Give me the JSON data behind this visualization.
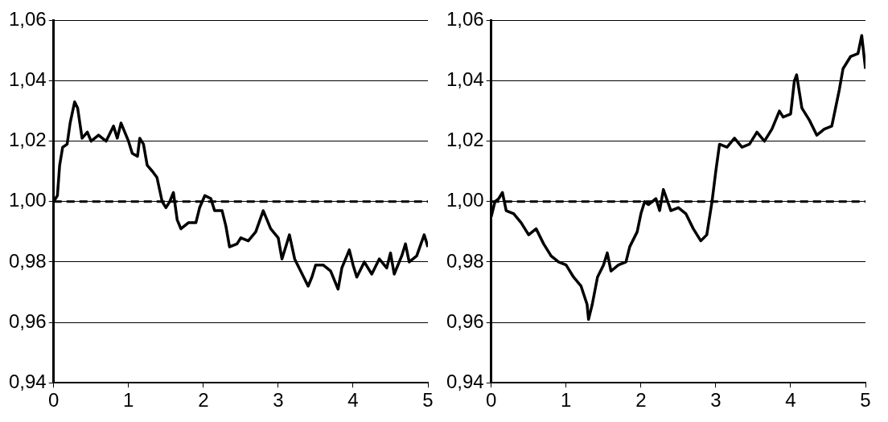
{
  "chart_data": [
    {
      "type": "line",
      "x": [
        0,
        0.05,
        0.08,
        0.12,
        0.18,
        0.22,
        0.28,
        0.32,
        0.38,
        0.45,
        0.5,
        0.6,
        0.7,
        0.8,
        0.85,
        0.9,
        1.0,
        1.05,
        1.12,
        1.15,
        1.2,
        1.25,
        1.32,
        1.38,
        1.45,
        1.5,
        1.55,
        1.6,
        1.65,
        1.7,
        1.8,
        1.9,
        1.95,
        2.02,
        2.1,
        2.15,
        2.25,
        2.3,
        2.35,
        2.45,
        2.5,
        2.6,
        2.7,
        2.8,
        2.9,
        3.0,
        3.05,
        3.1,
        3.15,
        3.22,
        3.3,
        3.4,
        3.45,
        3.5,
        3.6,
        3.7,
        3.8,
        3.85,
        3.95,
        4.0,
        4.05,
        4.15,
        4.25,
        4.35,
        4.45,
        4.5,
        4.55,
        4.65,
        4.7,
        4.75,
        4.85,
        4.95,
        5.0
      ],
      "series": [
        {
          "color": "#000000",
          "values": [
            1.0,
            1.002,
            1.012,
            1.018,
            1.019,
            1.026,
            1.033,
            1.031,
            1.021,
            1.023,
            1.02,
            1.022,
            1.02,
            1.025,
            1.021,
            1.026,
            1.02,
            1.016,
            1.015,
            1.021,
            1.019,
            1.012,
            1.01,
            1.008,
            1.0,
            0.998,
            1.0,
            1.003,
            0.994,
            0.991,
            0.993,
            0.993,
            0.998,
            1.002,
            1.001,
            0.997,
            0.997,
            0.992,
            0.985,
            0.986,
            0.988,
            0.987,
            0.99,
            0.997,
            0.991,
            0.988,
            0.981,
            0.985,
            0.989,
            0.981,
            0.977,
            0.972,
            0.975,
            0.979,
            0.979,
            0.977,
            0.971,
            0.978,
            0.984,
            0.979,
            0.975,
            0.98,
            0.976,
            0.981,
            0.978,
            0.983,
            0.976,
            0.982,
            0.986,
            0.98,
            0.982,
            0.989,
            0.985
          ]
        }
      ],
      "xlim": [
        0,
        5
      ],
      "xticks": [
        0,
        1,
        2,
        3,
        4,
        5
      ],
      "ylim": [
        0.94,
        1.06
      ],
      "yticks": [
        {
          "value": 0.94,
          "label": "0,94"
        },
        {
          "value": 0.96,
          "label": "0,96"
        },
        {
          "value": 0.98,
          "label": "0,98"
        },
        {
          "value": 1.0,
          "label": "1,00"
        },
        {
          "value": 1.02,
          "label": "1,02"
        },
        {
          "value": 1.04,
          "label": "1,04"
        },
        {
          "value": 1.06,
          "label": "1,06"
        }
      ],
      "grid": "y",
      "marker": "none",
      "line_style": "solid",
      "ref_lines": [
        {
          "axis": "y",
          "value": 1.0,
          "color": "#000000",
          "line_style": "dashed"
        }
      ]
    },
    {
      "type": "line",
      "x": [
        0,
        0.05,
        0.1,
        0.15,
        0.2,
        0.3,
        0.4,
        0.5,
        0.6,
        0.7,
        0.8,
        0.9,
        1.0,
        1.1,
        1.2,
        1.28,
        1.3,
        1.35,
        1.42,
        1.5,
        1.55,
        1.6,
        1.7,
        1.8,
        1.85,
        1.95,
        2.0,
        2.05,
        2.1,
        2.2,
        2.25,
        2.3,
        2.4,
        2.5,
        2.6,
        2.7,
        2.8,
        2.88,
        2.95,
        3.0,
        3.05,
        3.15,
        3.25,
        3.35,
        3.45,
        3.55,
        3.65,
        3.75,
        3.85,
        3.9,
        4.0,
        4.05,
        4.08,
        4.15,
        4.25,
        4.35,
        4.45,
        4.55,
        4.65,
        4.7,
        4.8,
        4.9,
        4.95,
        5.0
      ],
      "series": [
        {
          "color": "#000000",
          "values": [
            0.995,
            1.0,
            1.001,
            1.003,
            0.997,
            0.996,
            0.993,
            0.989,
            0.991,
            0.986,
            0.982,
            0.98,
            0.979,
            0.975,
            0.972,
            0.966,
            0.961,
            0.966,
            0.975,
            0.979,
            0.983,
            0.977,
            0.979,
            0.98,
            0.985,
            0.99,
            0.996,
            1.0,
            0.999,
            1.001,
            0.997,
            1.004,
            0.997,
            0.998,
            0.996,
            0.991,
            0.987,
            0.989,
            1.0,
            1.01,
            1.019,
            1.018,
            1.021,
            1.018,
            1.019,
            1.023,
            1.02,
            1.024,
            1.03,
            1.028,
            1.029,
            1.04,
            1.042,
            1.031,
            1.027,
            1.022,
            1.024,
            1.025,
            1.037,
            1.044,
            1.048,
            1.049,
            1.055,
            1.044
          ]
        }
      ],
      "xlim": [
        0,
        5
      ],
      "xticks": [
        0,
        1,
        2,
        3,
        4,
        5
      ],
      "ylim": [
        0.94,
        1.06
      ],
      "yticks": [
        {
          "value": 0.94,
          "label": "0,94"
        },
        {
          "value": 0.96,
          "label": "0,96"
        },
        {
          "value": 0.98,
          "label": "0,98"
        },
        {
          "value": 1.0,
          "label": "1,00"
        },
        {
          "value": 1.02,
          "label": "1,02"
        },
        {
          "value": 1.04,
          "label": "1,04"
        },
        {
          "value": 1.06,
          "label": "1,06"
        }
      ],
      "grid": "y",
      "marker": "none",
      "line_style": "solid",
      "ref_lines": [
        {
          "axis": "y",
          "value": 1.0,
          "color": "#000000",
          "line_style": "dashed"
        }
      ]
    }
  ]
}
